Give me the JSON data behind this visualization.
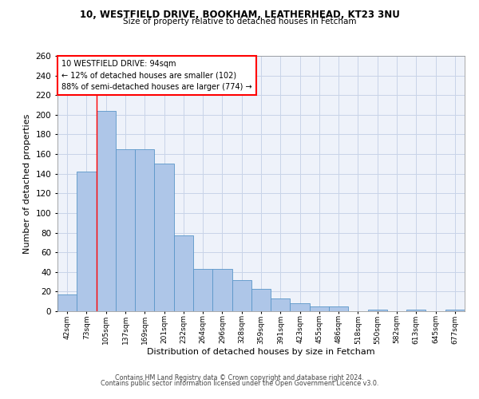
{
  "title1": "10, WESTFIELD DRIVE, BOOKHAM, LEATHERHEAD, KT23 3NU",
  "title2": "Size of property relative to detached houses in Fetcham",
  "xlabel": "Distribution of detached houses by size in Fetcham",
  "ylabel": "Number of detached properties",
  "footnote1": "Contains HM Land Registry data © Crown copyright and database right 2024.",
  "footnote2": "Contains public sector information licensed under the Open Government Licence v3.0.",
  "bar_labels": [
    "42sqm",
    "73sqm",
    "105sqm",
    "137sqm",
    "169sqm",
    "201sqm",
    "232sqm",
    "264sqm",
    "296sqm",
    "328sqm",
    "359sqm",
    "391sqm",
    "423sqm",
    "455sqm",
    "486sqm",
    "518sqm",
    "550sqm",
    "582sqm",
    "613sqm",
    "645sqm",
    "677sqm"
  ],
  "bar_values": [
    17,
    142,
    204,
    165,
    165,
    150,
    77,
    43,
    43,
    32,
    23,
    13,
    8,
    5,
    5,
    0,
    2,
    0,
    2,
    0,
    2
  ],
  "bar_color": "#aec6e8",
  "bar_edge_color": "#5a96c8",
  "red_line_x": 1.5,
  "annotation_line1": "10 WESTFIELD DRIVE: 94sqm",
  "annotation_line2": "← 12% of detached houses are smaller (102)",
  "annotation_line3": "88% of semi-detached houses are larger (774) →",
  "ylim": [
    0,
    260
  ],
  "yticks": [
    0,
    20,
    40,
    60,
    80,
    100,
    120,
    140,
    160,
    180,
    200,
    220,
    240,
    260
  ],
  "grid_color": "#c8d4e8",
  "bg_color": "#eef2fa"
}
